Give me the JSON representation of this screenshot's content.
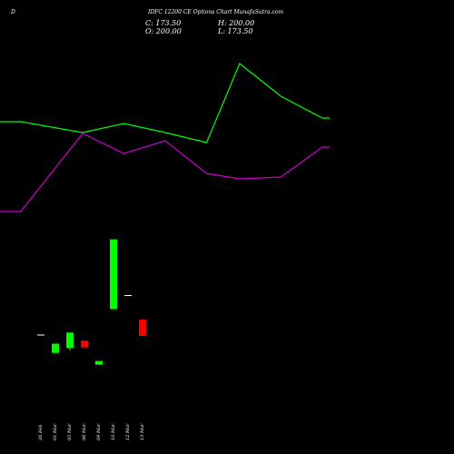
{
  "header": {
    "left": "D",
    "title": "IDFC 12200 CE Options Chart MunafaSutra.com"
  },
  "ohlc": {
    "close": "C: 173.50",
    "high": "H: 200.00",
    "open": "O: 200.00",
    "low": "L: 173.50"
  },
  "colors": {
    "green_line": "#00ff00",
    "magenta_line": "#cc00cc",
    "up": "#00ff00",
    "down": "#ff0000",
    "background": "#000000"
  },
  "chart_data": {
    "type": "candlestick",
    "x": [
      "26 Feb",
      "01 Mar",
      "05 Mar",
      "06 Mar",
      "09 Mar",
      "10 Mar",
      "12 Mar",
      "13 Mar"
    ],
    "candles": [
      {
        "open": 175,
        "high": 175,
        "low": 175,
        "close": 175
      },
      {
        "open": 146,
        "high": 161,
        "low": 146,
        "close": 161
      },
      {
        "open": 154,
        "high": 179,
        "low": 150,
        "close": 179
      },
      {
        "open": 166,
        "high": 166,
        "low": 155,
        "close": 155
      },
      {
        "open": 127,
        "high": 133,
        "low": 127,
        "close": 133
      },
      {
        "open": 217,
        "high": 330,
        "low": 217,
        "close": 330
      },
      {
        "open": 239,
        "high": 239,
        "low": 239,
        "close": 239
      },
      {
        "open": 200,
        "high": 200,
        "low": 173.5,
        "close": 173.5
      }
    ],
    "volume": [
      0,
      0,
      0,
      0,
      0,
      0,
      0,
      0
    ],
    "line_green": [
      134,
      134,
      146,
      136,
      146,
      157,
      70,
      106,
      130
    ],
    "line_magenta": [
      233,
      233,
      147,
      169,
      155,
      191,
      197,
      195,
      162
    ],
    "line_x_index": [
      0,
      0.5,
      2,
      3,
      4,
      5,
      5.8,
      6.8,
      7.8
    ]
  }
}
